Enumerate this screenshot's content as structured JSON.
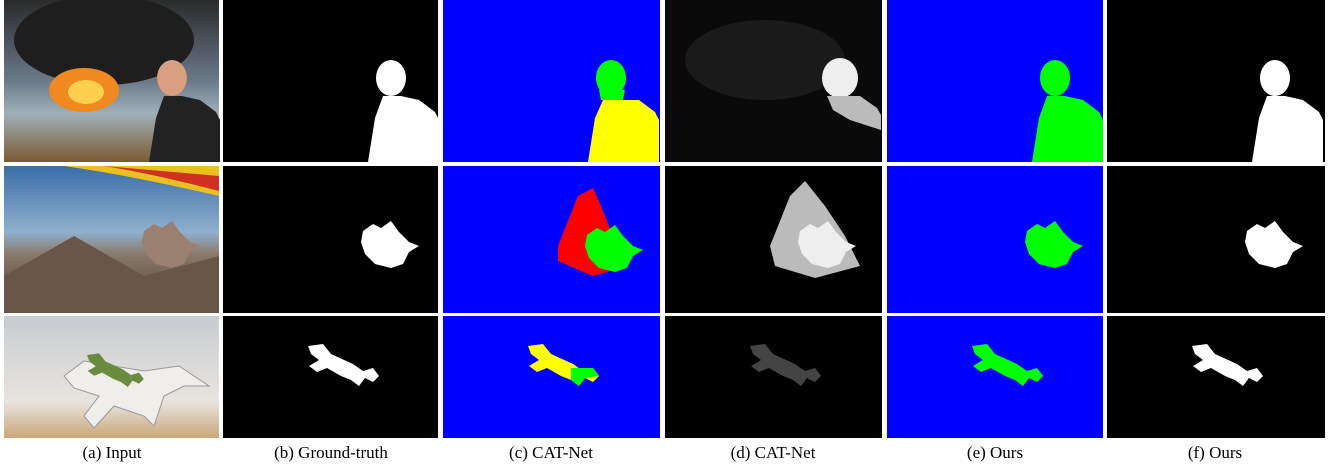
{
  "captions": [
    "(a) Input",
    "(b) Ground-truth",
    "(c) CAT-Net",
    "(d) CAT-Net",
    "(e) Ours",
    "(f) Ours"
  ]
}
